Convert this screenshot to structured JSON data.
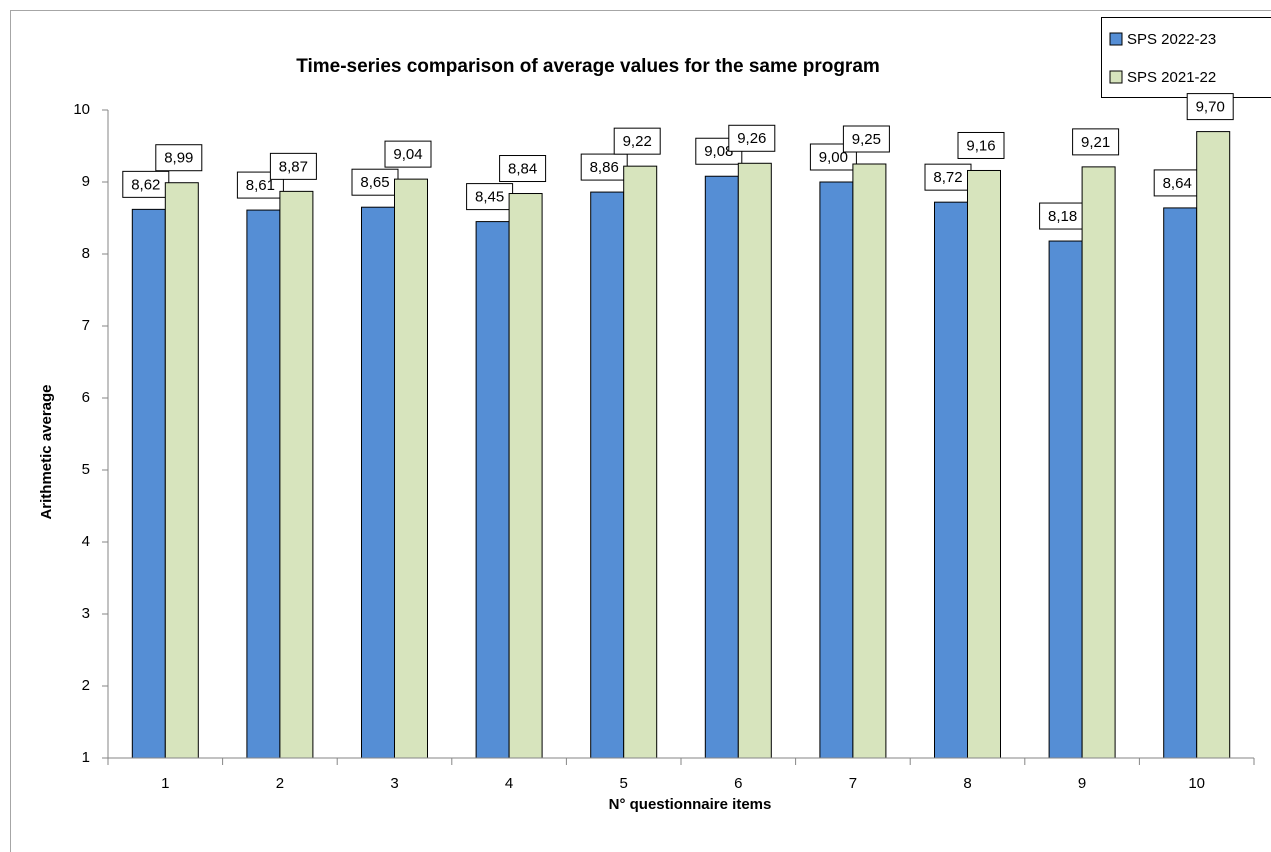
{
  "chart_data": {
    "type": "bar",
    "title": "Time-series comparison of average values for the same program",
    "x_label": "N° questionnaire items",
    "y_label": "Arithmetic average",
    "categories": [
      "1",
      "2",
      "3",
      "4",
      "5",
      "6",
      "7",
      "8",
      "9",
      "10"
    ],
    "series": [
      {
        "name": "SPS 2022-23",
        "color": "#558ed5",
        "values": [
          8.62,
          8.61,
          8.65,
          8.45,
          8.86,
          9.08,
          9.0,
          8.72,
          8.18,
          8.64
        ],
        "value_labels": [
          "8,62",
          "8,61",
          "8,65",
          "8,45",
          "8,86",
          "9,08",
          "9,00",
          "8,72",
          "8,18",
          "8,64"
        ]
      },
      {
        "name": "SPS 2021-22",
        "color": "#d7e4bd",
        "values": [
          8.99,
          8.87,
          9.04,
          8.84,
          9.22,
          9.26,
          9.25,
          9.16,
          9.21,
          9.7
        ],
        "value_labels": [
          "8,99",
          "8,87",
          "9,04",
          "8,84",
          "9,22",
          "9,26",
          "9,25",
          "9,16",
          "9,21",
          "9,70"
        ]
      }
    ],
    "ylim": [
      1,
      10
    ],
    "yticks": [
      1,
      2,
      3,
      4,
      5,
      6,
      7,
      8,
      9,
      10
    ],
    "grid": false,
    "legend": "top-right"
  }
}
